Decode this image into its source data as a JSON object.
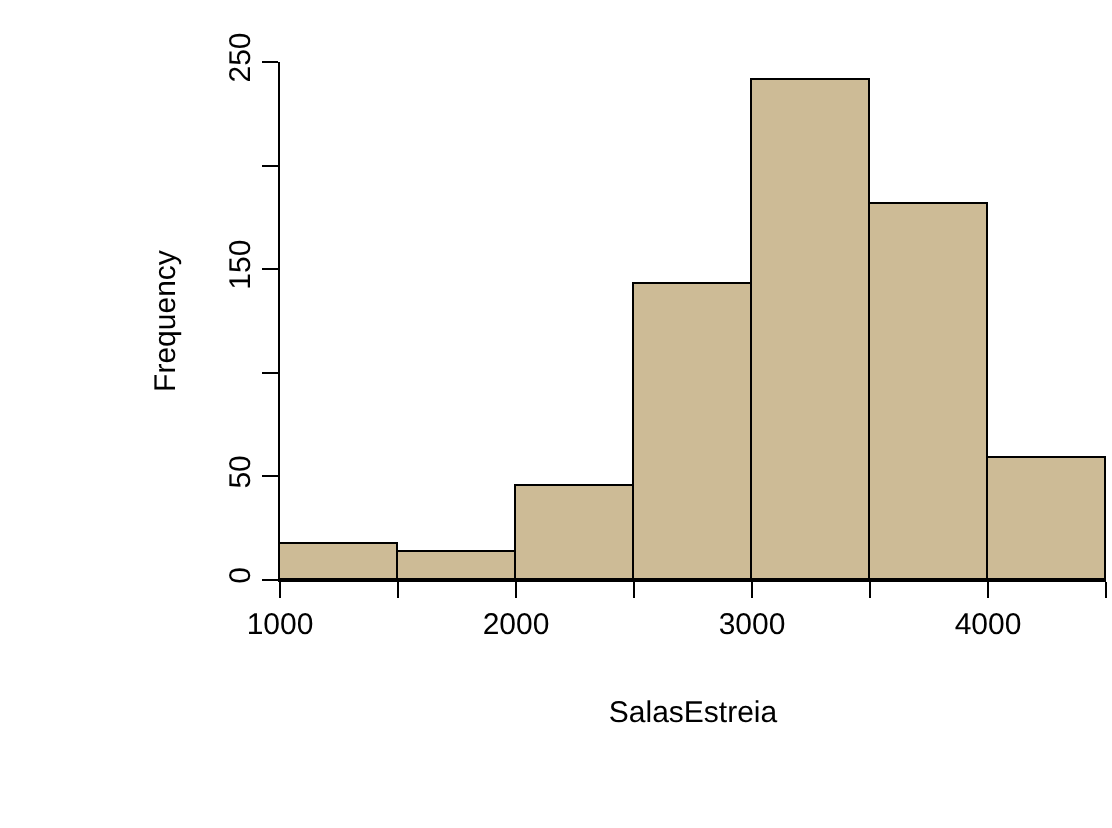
{
  "chart_data": {
    "type": "histogram",
    "xlabel": "SalasEstreia",
    "ylabel": "Frequency",
    "bins": [
      1000,
      1500,
      2000,
      2500,
      3000,
      3500,
      4000,
      4500
    ],
    "values": [
      17,
      14,
      45,
      143,
      241,
      181,
      59
    ],
    "color": "#cdbb96",
    "xlim": [
      1000,
      4500
    ],
    "xticks": [
      1000,
      {
        "value": 1500,
        "label": null
      },
      2000,
      {
        "value": 2500,
        "label": null
      },
      3000,
      {
        "value": 3500,
        "label": null
      },
      4000,
      {
        "value": 4500,
        "label": null
      }
    ],
    "ylim": [
      0,
      250
    ],
    "yticks": [
      0,
      50,
      {
        "value": 100,
        "label": null
      },
      150,
      {
        "value": 200,
        "label": null
      },
      250
    ],
    "grid": false
  }
}
